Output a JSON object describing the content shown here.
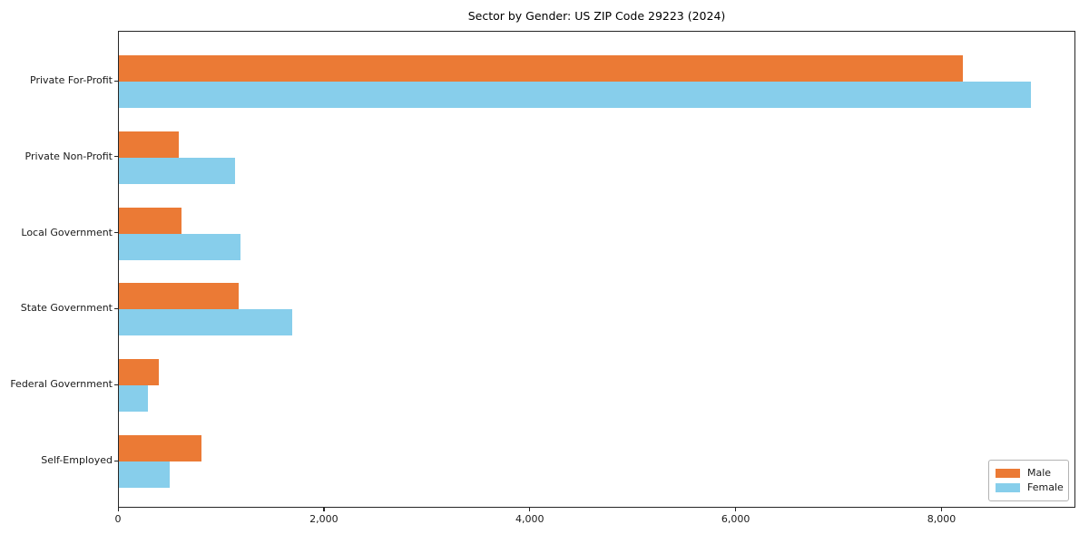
{
  "figure": {
    "background": "#ffffff"
  },
  "chart_data": {
    "type": "bar",
    "orientation": "horizontal",
    "title": "Sector by Gender: US ZIP Code 29223 (2024)",
    "categories": [
      "Private For-Profit",
      "Private Non-Profit",
      "Local Government",
      "State Government",
      "Federal Government",
      "Self-Employed"
    ],
    "series": [
      {
        "name": "Male",
        "color": "#eb7a35",
        "values": [
          8200,
          580,
          610,
          1160,
          390,
          800
        ]
      },
      {
        "name": "Female",
        "color": "#87ceeb",
        "values": [
          8860,
          1130,
          1180,
          1680,
          280,
          490
        ]
      }
    ],
    "xlabel": "",
    "ylabel": "",
    "xlim": [
      0,
      9300
    ],
    "xticks": [
      0,
      2000,
      4000,
      6000,
      8000
    ],
    "xtick_labels": [
      "0",
      "2,000",
      "4,000",
      "6,000",
      "8,000"
    ],
    "grid": false,
    "legend": {
      "position": "lower right",
      "entries": [
        "Male",
        "Female"
      ]
    }
  }
}
